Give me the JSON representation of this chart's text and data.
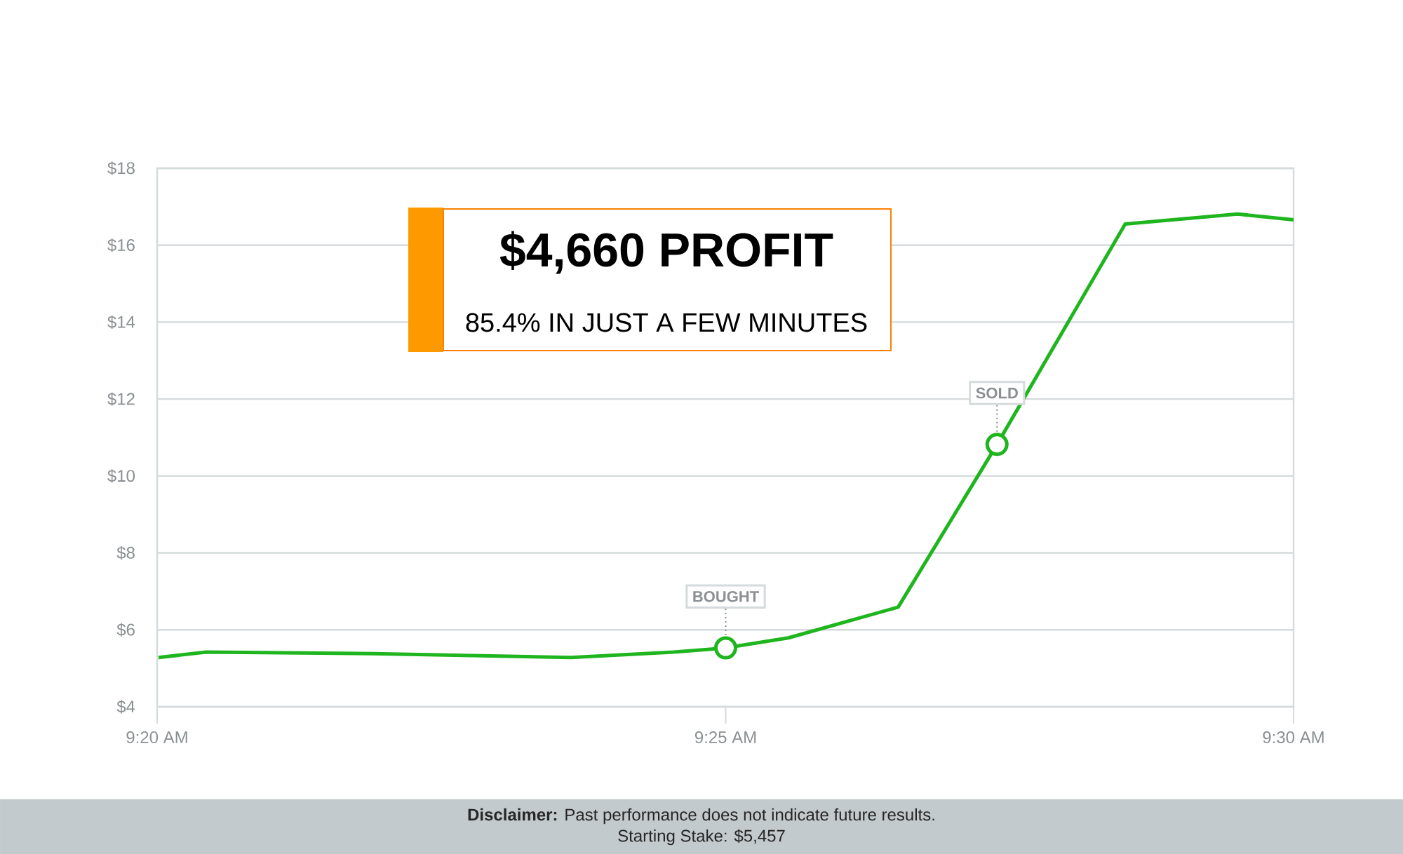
{
  "chart_data": {
    "type": "line",
    "color": "#1fb51f",
    "marker": "none",
    "grid": "y",
    "x": [
      9.3335,
      9.3405,
      9.365,
      9.394,
      9.4091,
      9.4167,
      9.4259,
      9.442,
      9.4565,
      9.4753,
      9.4918,
      9.5
    ],
    "values": [
      5.28,
      5.42,
      5.38,
      5.28,
      5.42,
      5.53,
      5.79,
      6.59,
      10.82,
      16.55,
      16.81,
      16.66
    ],
    "xlim": [
      9.3333,
      9.5
    ],
    "ylim": [
      4,
      18
    ],
    "xticks": [
      {
        "value": 9.3333,
        "label": "9:20 AM"
      },
      {
        "value": 9.4167,
        "label": "9:25 AM"
      },
      {
        "value": 9.5,
        "label": "9:30 AM"
      }
    ],
    "yticks": [
      {
        "value": 4,
        "label": "$4"
      },
      {
        "value": 6,
        "label": "$6"
      },
      {
        "value": 8,
        "label": "$8"
      },
      {
        "value": 10,
        "label": "$10"
      },
      {
        "value": 12,
        "label": "$12"
      },
      {
        "value": 14,
        "label": "$14"
      },
      {
        "value": 16,
        "label": "$16"
      },
      {
        "value": 18,
        "label": "$18"
      }
    ],
    "annotations": [
      "$4,660 PROFIT",
      "85.4% IN JUST A FEW MINUTES",
      {
        "text": "BOUGHT",
        "x": 9.4167,
        "y": 5.53
      },
      {
        "text": "SOLD",
        "x": 9.4565,
        "y": 10.82
      },
      "**Disclaimer:** Past performance does not indicate future results.",
      "Starting Stake: $5,457"
    ]
  }
}
